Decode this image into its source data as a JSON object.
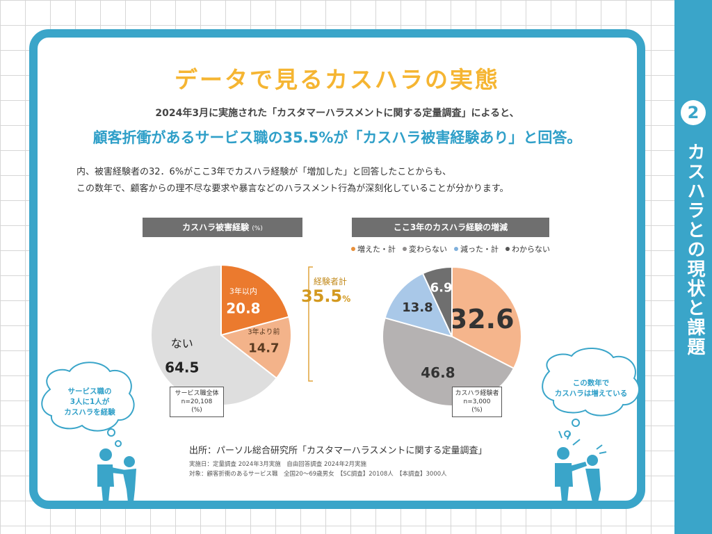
{
  "section": {
    "number": "2",
    "label": "カスハラとの現状と課題"
  },
  "title": "データで見るカスハラの実態",
  "lead1": "2024年3月に実施された「カスタマーハラスメントに関する定量調査」によると、",
  "lead2": "顧客折衝があるサービス職の35.5%が「カスハラ被害経験あり」と回答。",
  "body1": "内、被害経験者の32．6%がここ3年でカスハラ経験が「増加した」と回答したことからも、",
  "body2": "この数年で、顧客からの理不尽な要求や暴言などのハラスメント行為が深刻化していることが分かります。",
  "chart1": {
    "header": "カスハラ被害経験",
    "header_unit": "(%)",
    "sum_label": "経験者計",
    "sum_value": "35.5",
    "sum_unit": "%",
    "note": [
      "サービス職全体",
      "n=20,108",
      "(%)"
    ]
  },
  "chart2": {
    "header": "ここ3年のカスハラ経験の増減",
    "note": [
      "カスハラ経験者",
      "n=3,000",
      "(%)"
    ]
  },
  "chart_data": [
    {
      "type": "pie",
      "title": "カスハラ被害経験",
      "unit": "%",
      "slices": [
        {
          "label": "3年以内",
          "value": 20.8,
          "color": "#eb7a2e"
        },
        {
          "label": "3年より前",
          "value": 14.7,
          "color": "#f3b38a"
        },
        {
          "label": "ない",
          "value": 64.5,
          "color": "#dedede"
        }
      ]
    },
    {
      "type": "pie",
      "title": "ここ3年のカスハラ経験の増減",
      "unit": "%",
      "legend": [
        "増えた・計",
        "変わらない",
        "減った・計",
        "わからない"
      ],
      "legend_position": "top",
      "slices": [
        {
          "label": "増えた・計",
          "value": 32.6,
          "color": "#f5b58c"
        },
        {
          "label": "変わらない",
          "value": 46.8,
          "color": "#b5b2b2"
        },
        {
          "label": "減った・計",
          "value": 13.8,
          "color": "#a9c8e8"
        },
        {
          "label": "わからない",
          "value": 6.9,
          "color": "#6f6f6f"
        }
      ]
    }
  ],
  "source": {
    "main": "出所：パーソル総合研究所「カスタマーハラスメントに関する定量調査」",
    "date": "実施日：定量調査 2024年3月実施　自由回答調査 2024年2月実施",
    "target": "対象：顧客折衝のあるサービス職　全国20～69歳男女　【SC調査】20108人　【本調査】3000人"
  },
  "bubble_left": [
    "サービス職の",
    "3人に1人が",
    "カスハラを経験"
  ],
  "bubble_right": [
    "この数年で",
    "カスハラは増えている"
  ],
  "colors": {
    "accent": "#3aa5c9",
    "title": "#f5b532",
    "sum": "#d3991f"
  }
}
